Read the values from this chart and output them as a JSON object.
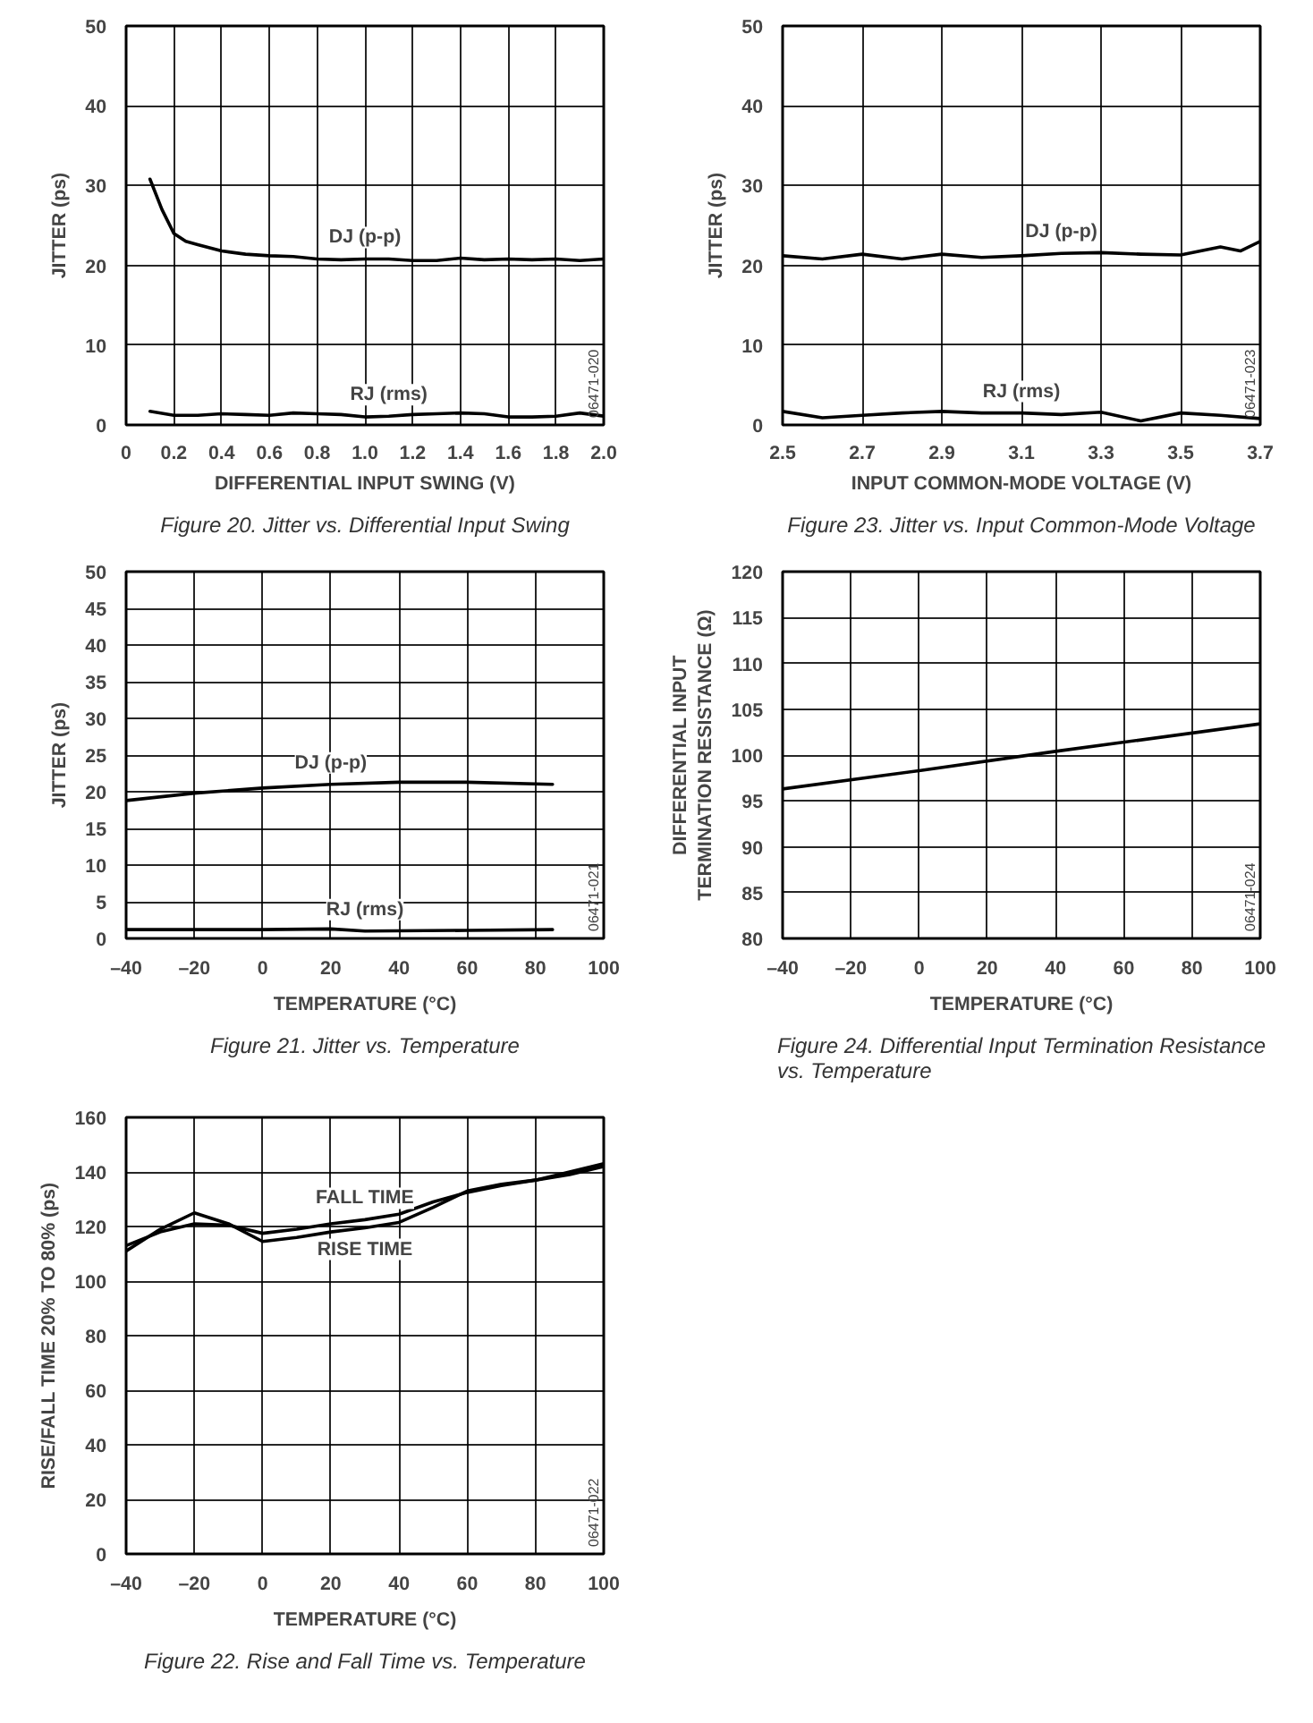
{
  "chart_data": [
    {
      "type": "line",
      "title": "Figure 20. Jitter vs. Differential Input Swing",
      "xlabel": "DIFFERENTIAL INPUT SWING (V)",
      "ylabel": "JITTER (ps)",
      "xlim": [
        0,
        2
      ],
      "ylim": [
        0,
        50
      ],
      "xticks": [
        0,
        0.2,
        0.4,
        0.6,
        0.8,
        {
          "value": 1,
          "label": "1.0"
        },
        1.2,
        1.4,
        1.6,
        1.8,
        {
          "value": 2,
          "label": "2.0"
        }
      ],
      "yticks": [
        0,
        10,
        20,
        30,
        40,
        50
      ],
      "grid": true,
      "annotations": [
        "06471-020"
      ],
      "series": [
        {
          "name": "DJ (p-p)",
          "color": "#000000",
          "x": [
            0.1,
            0.15,
            0.2,
            0.25,
            0.3,
            0.4,
            0.5,
            0.6,
            0.7,
            0.8,
            0.9,
            1.0,
            1.1,
            1.2,
            1.3,
            1.4,
            1.5,
            1.6,
            1.7,
            1.8,
            1.9,
            2.0
          ],
          "values": [
            30.8,
            27,
            24,
            23,
            22.6,
            21.8,
            21.4,
            21.2,
            21.1,
            20.8,
            20.7,
            20.8,
            20.8,
            20.6,
            20.6,
            20.9,
            20.7,
            20.8,
            20.7,
            20.8,
            20.6,
            20.8
          ]
        },
        {
          "name": "RJ (rms)",
          "color": "#000000",
          "x": [
            0.1,
            0.2,
            0.3,
            0.4,
            0.5,
            0.6,
            0.7,
            0.8,
            0.9,
            1.0,
            1.1,
            1.2,
            1.3,
            1.4,
            1.5,
            1.6,
            1.7,
            1.8,
            1.9,
            2.0
          ],
          "values": [
            1.7,
            1.2,
            1.2,
            1.4,
            1.3,
            1.2,
            1.5,
            1.4,
            1.3,
            1.0,
            1.1,
            1.3,
            1.4,
            1.5,
            1.4,
            1.0,
            1.0,
            1.1,
            1.5,
            1.1
          ]
        }
      ]
    },
    {
      "type": "line",
      "title": "Figure 23. Jitter vs. Input Common-Mode Voltage",
      "xlabel": "INPUT COMMON-MODE VOLTAGE (V)",
      "ylabel": "JITTER (ps)",
      "xlim": [
        2.5,
        3.7
      ],
      "ylim": [
        0,
        50
      ],
      "xticks": [
        2.5,
        2.7,
        2.9,
        3.1,
        3.3,
        3.5,
        3.7
      ],
      "yticks": [
        0,
        10,
        20,
        30,
        40,
        50
      ],
      "grid": true,
      "annotations": [
        "06471-023"
      ],
      "series": [
        {
          "name": "DJ (p-p)",
          "color": "#000000",
          "x": [
            2.5,
            2.6,
            2.7,
            2.8,
            2.9,
            3.0,
            3.1,
            3.2,
            3.3,
            3.4,
            3.5,
            3.6,
            3.65,
            3.7
          ],
          "values": [
            21.2,
            20.8,
            21.4,
            20.8,
            21.4,
            21.0,
            21.2,
            21.5,
            21.6,
            21.4,
            21.3,
            22.3,
            21.8,
            23.0
          ]
        },
        {
          "name": "RJ (rms)",
          "color": "#000000",
          "x": [
            2.5,
            2.6,
            2.7,
            2.8,
            2.9,
            3.0,
            3.1,
            3.2,
            3.3,
            3.4,
            3.5,
            3.6,
            3.7
          ],
          "values": [
            1.7,
            0.9,
            1.2,
            1.5,
            1.7,
            1.5,
            1.5,
            1.3,
            1.6,
            0.5,
            1.5,
            1.2,
            0.8
          ]
        }
      ]
    },
    {
      "type": "line",
      "title": "Figure 21. Jitter vs. Temperature",
      "xlabel": "TEMPERATURE (°C)",
      "ylabel": "JITTER (ps)",
      "xlim": [
        -40,
        100
      ],
      "ylim": [
        0,
        50
      ],
      "xticks": [
        {
          "value": -40,
          "label": "–40"
        },
        {
          "value": -20,
          "label": "–20"
        },
        0,
        20,
        40,
        60,
        80,
        100
      ],
      "yticks": [
        0,
        5,
        10,
        15,
        20,
        25,
        30,
        35,
        40,
        45,
        50
      ],
      "grid": true,
      "annotations": [
        "06471-021"
      ],
      "series": [
        {
          "name": "DJ (p-p)",
          "color": "#000000",
          "x": [
            -40,
            -20,
            0,
            20,
            40,
            60,
            85
          ],
          "values": [
            18.8,
            19.8,
            20.5,
            21.0,
            21.3,
            21.3,
            21.0
          ]
        },
        {
          "name": "RJ (rms)",
          "color": "#000000",
          "x": [
            -40,
            0,
            20,
            30,
            60,
            85
          ],
          "values": [
            1.2,
            1.2,
            1.3,
            1.0,
            1.1,
            1.2
          ]
        }
      ]
    },
    {
      "type": "line",
      "title": "Figure 24. Differential Input Termination Resistance vs. Temperature",
      "xlabel": "TEMPERATURE (°C)",
      "ylabel": "DIFFERENTIAL INPUT\nTERMINATION RESISTANCE (Ω)",
      "xlim": [
        -40,
        100
      ],
      "ylim": [
        80,
        120
      ],
      "xticks": [
        {
          "value": -40,
          "label": "–40"
        },
        {
          "value": -20,
          "label": "–20"
        },
        0,
        20,
        40,
        60,
        80,
        100
      ],
      "yticks": [
        80,
        85,
        90,
        95,
        100,
        105,
        110,
        115,
        120
      ],
      "grid": true,
      "annotations": [
        "06471-024"
      ],
      "series": [
        {
          "color": "#000000",
          "x": [
            -40,
            0,
            40,
            100
          ],
          "values": [
            96.3,
            98.3,
            100.4,
            103.4
          ]
        }
      ]
    },
    {
      "type": "line",
      "title": "Figure 22. Rise and Fall Time vs. Temperature",
      "xlabel": "TEMPERATURE (°C)",
      "ylabel": "RISE/FALL TIME 20% TO 80% (ps)",
      "xlim": [
        -40,
        100
      ],
      "ylim": [
        0,
        160
      ],
      "xticks": [
        {
          "value": -40,
          "label": "–40"
        },
        {
          "value": -20,
          "label": "–20"
        },
        0,
        20,
        40,
        60,
        80,
        100
      ],
      "yticks": [
        0,
        20,
        40,
        60,
        80,
        100,
        120,
        140,
        160
      ],
      "grid": true,
      "annotations": [
        "06471-022"
      ],
      "series": [
        {
          "name": "FALL TIME",
          "color": "#000000",
          "x": [
            -40,
            -30,
            -20,
            -10,
            0,
            10,
            20,
            30,
            40,
            50,
            60,
            70,
            80,
            90,
            100
          ],
          "values": [
            113,
            118,
            121,
            120.5,
            117.5,
            119,
            121,
            122.5,
            124.5,
            129,
            132.5,
            135,
            137,
            139,
            142
          ]
        },
        {
          "name": "RISE TIME",
          "color": "#000000",
          "x": [
            -40,
            -30,
            -20,
            -10,
            0,
            10,
            20,
            30,
            40,
            50,
            60,
            70,
            80,
            90,
            100
          ],
          "values": [
            111,
            119,
            125,
            121,
            114.5,
            116,
            118,
            119.5,
            121.5,
            127,
            133,
            135.5,
            137,
            140,
            143
          ]
        }
      ]
    }
  ]
}
